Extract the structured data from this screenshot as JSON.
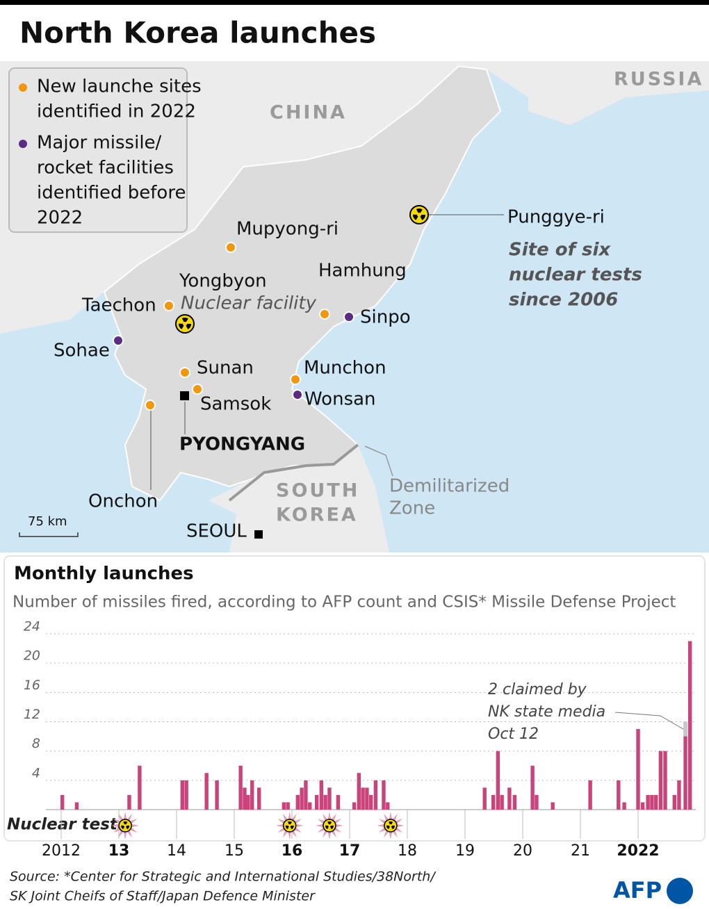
{
  "title": "North Korea launches",
  "map": {
    "legend": [
      {
        "lines": [
          "New launche sites",
          "identified in 2022"
        ],
        "color": "#f0960f"
      },
      {
        "lines": [
          "Major missile/",
          "rocket facilities",
          "identified before",
          "2022"
        ],
        "color": "#5b2c83"
      }
    ],
    "countries": {
      "china": "CHINA",
      "russia": "RUSSIA",
      "south_korea": [
        "SOUTH",
        "KOREA"
      ]
    },
    "places": {
      "punggye": "Punggye-ri",
      "punggye_note": [
        "Site of six",
        "nuclear tests",
        "since 2006"
      ],
      "mupyong": "Mupyong-ri",
      "hamhung": "Hamhung",
      "yongbyon": "Yongbyon",
      "yongbyon_note": "Nuclear facility",
      "taechon": "Taechon",
      "sinpo": "Sinpo",
      "sohae": "Sohae",
      "sunan": "Sunan",
      "munchon": "Munchon",
      "samsok": "Samsok",
      "wonsan": "Wonsan",
      "pyongyang": "PYONGYANG",
      "onchon": "Onchon",
      "seoul": "SEOUL",
      "dmz": [
        "Demilitarized",
        "Zone"
      ]
    },
    "scale": "75 km"
  },
  "chart_data": {
    "type": "bar",
    "title": "Monthly launches",
    "subtitle": "Number of missiles fired, according to AFP count and CSIS* Missile Defense Project",
    "color": "#c9447a",
    "grid": true,
    "x": [
      2012.02,
      2012.27,
      2013.18,
      2013.36,
      2014.1,
      2014.17,
      2014.52,
      2014.7,
      2015.11,
      2015.18,
      2015.24,
      2015.31,
      2015.43,
      2015.86,
      2015.93,
      2016.1,
      2016.17,
      2016.24,
      2016.31,
      2016.43,
      2016.51,
      2016.58,
      2016.65,
      2016.8,
      2017.08,
      2017.16,
      2017.23,
      2017.3,
      2017.37,
      2017.45,
      2017.59,
      2017.66,
      2019.34,
      2019.49,
      2019.57,
      2019.64,
      2019.77,
      2019.86,
      2020.17,
      2020.24,
      2020.52,
      2021.17,
      2021.66,
      2021.76,
      2022.0,
      2022.08,
      2022.17,
      2022.24,
      2022.31,
      2022.39,
      2022.47,
      2022.63,
      2022.71,
      2022.82,
      2022.9
    ],
    "values": [
      2,
      1,
      2,
      6,
      4,
      4,
      5,
      4,
      6,
      3,
      2,
      4,
      3,
      1,
      1,
      2,
      3,
      4,
      1,
      2,
      4,
      2,
      3,
      2,
      1,
      5,
      3,
      3,
      2,
      4,
      4,
      1,
      3,
      2,
      8,
      2,
      3,
      2,
      6,
      2,
      1,
      4,
      4,
      1,
      11,
      1,
      2,
      2,
      2,
      8,
      8,
      2,
      4,
      12,
      23
    ],
    "xlim": [
      2012,
      2023
    ],
    "xticks": [
      {
        "value": 2012,
        "label": "2012",
        "bold": false
      },
      {
        "value": 2013,
        "label": "13",
        "bold": true
      },
      {
        "value": 2014,
        "label": "14",
        "bold": false
      },
      {
        "value": 2015,
        "label": "15",
        "bold": false
      },
      {
        "value": 2016,
        "label": "16",
        "bold": true
      },
      {
        "value": 2017,
        "label": "17",
        "bold": true
      },
      {
        "value": 2018,
        "label": "18",
        "bold": false
      },
      {
        "value": 2019,
        "label": "19",
        "bold": false
      },
      {
        "value": 2020,
        "label": "20",
        "bold": false
      },
      {
        "value": 2021,
        "label": "21",
        "bold": false
      },
      {
        "value": 2022,
        "label": "2022",
        "bold": true
      }
    ],
    "ylim": [
      0,
      24
    ],
    "yticks": [
      4,
      8,
      12,
      16,
      20,
      24
    ],
    "annotation": {
      "lines": [
        "2 claimed by",
        "NK state media",
        "Oct 12"
      ],
      "x": 2022.82,
      "value": 2,
      "color": "#c8c8c8"
    },
    "nuclear_tests": {
      "label": "Nuclear tests",
      "x": [
        2013.11,
        2015.96,
        2016.65,
        2017.71
      ]
    }
  },
  "source": [
    "Source: *Center for Strategic and International Studies/38North/",
    "SK Joint Cheifs of Staff/Japan Defence Minister"
  ],
  "logo": "AFP"
}
